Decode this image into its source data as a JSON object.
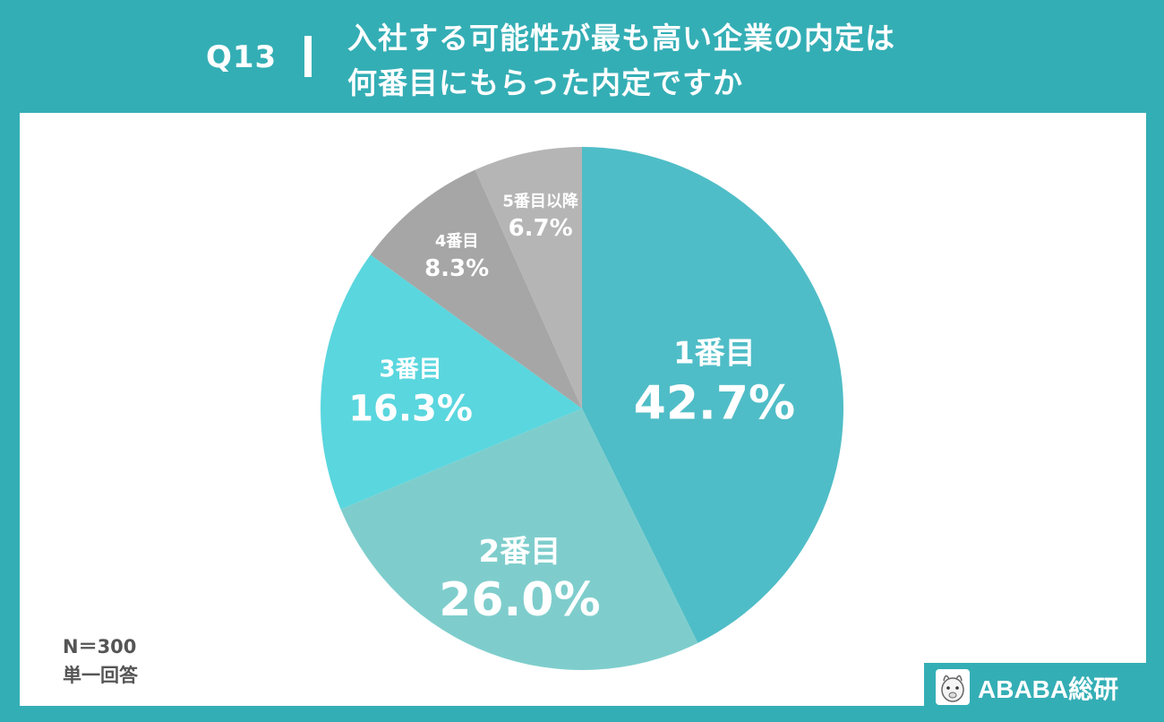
{
  "header": {
    "question": "Q13",
    "title_line1": "入社する可能性が最も高い企業の内定は",
    "title_line2": "何番目にもらった内定ですか"
  },
  "notes": {
    "sample": "N＝300",
    "answer_type": "単一回答"
  },
  "logo": {
    "text": "ABABA総研",
    "icon": "alpaca-icon"
  },
  "colors": {
    "header_bg": "#34aeb5",
    "slice_1": "#4fbdc7",
    "slice_2": "#7ecdcc",
    "slice_3": "#5ad6de",
    "slice_4": "#a6a6a6",
    "slice_5": "#b5b5b5"
  },
  "chart_data": {
    "type": "pie",
    "categories": [
      "1番目",
      "2番目",
      "3番目",
      "4番目",
      "5番目以降"
    ],
    "values": [
      42.7,
      26.0,
      16.3,
      8.3,
      6.7
    ],
    "value_labels": [
      "42.7%",
      "26.0%",
      "16.3%",
      "8.3%",
      "6.7%"
    ],
    "start_angle_deg": 0,
    "direction": "clockwise",
    "legend": "none"
  }
}
